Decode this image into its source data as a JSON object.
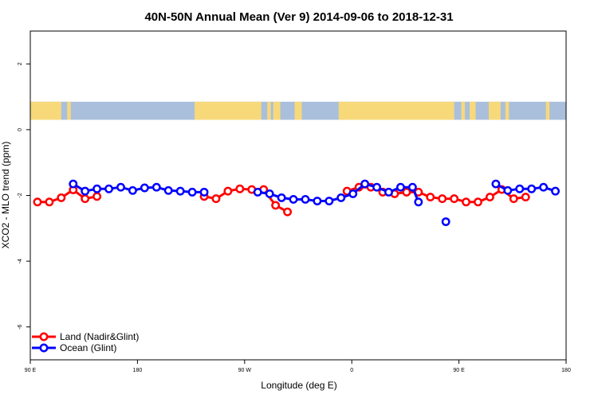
{
  "chart_data": {
    "type": "line",
    "title": "40N-50N Annual Mean (Ver 9)   2014-09-06 to 2018-12-31",
    "xlabel": "Longitude (deg E)",
    "ylabel": "XCO2 - MLO trend (ppm)",
    "xlim": [
      90,
      540
    ],
    "ylim": [
      -7,
      3
    ],
    "x_ticks": [
      {
        "value": 90,
        "label": "90 E"
      },
      {
        "value": 180,
        "label": "180"
      },
      {
        "value": 270,
        "label": "90 W"
      },
      {
        "value": 360,
        "label": "0"
      },
      {
        "value": 450,
        "label": "90 E"
      },
      {
        "value": 540,
        "label": "180"
      }
    ],
    "y_ticks": [
      {
        "value": 2,
        "label": "2"
      },
      {
        "value": 0,
        "label": "0"
      },
      {
        "value": -2,
        "label": "-2"
      },
      {
        "value": -4,
        "label": "-4"
      },
      {
        "value": -6,
        "label": "-6"
      }
    ],
    "grid": false,
    "legend_position": "bottom-left",
    "map_strip": {
      "land_color": "#f7d97a",
      "ocean_color": "#a9bfdc"
    },
    "series": [
      {
        "name": "Land (Nadir&Glint)",
        "color": "#ff0000",
        "segments": [
          [
            [
              96,
              -2.2
            ],
            [
              106,
              -2.2
            ],
            [
              116,
              -2.07
            ],
            [
              126,
              -1.83
            ],
            [
              136,
              -2.1
            ],
            [
              146,
              -2.03
            ]
          ],
          [
            [
              236,
              -2.03
            ],
            [
              246,
              -2.1
            ],
            [
              256,
              -1.87
            ],
            [
              266,
              -1.8
            ],
            [
              276,
              -1.82
            ],
            [
              286,
              -1.82
            ],
            [
              296,
              -2.3
            ],
            [
              306,
              -2.5
            ]
          ],
          [
            [
              356,
              -1.87
            ],
            [
              366,
              -1.75
            ],
            [
              376,
              -1.75
            ],
            [
              386,
              -1.9
            ],
            [
              396,
              -1.95
            ],
            [
              406,
              -1.9
            ],
            [
              416,
              -1.9
            ],
            [
              426,
              -2.05
            ],
            [
              436,
              -2.1
            ],
            [
              446,
              -2.1
            ],
            [
              456,
              -2.2
            ],
            [
              466,
              -2.2
            ],
            [
              476,
              -2.05
            ],
            [
              486,
              -1.82
            ],
            [
              496,
              -2.1
            ],
            [
              506,
              -2.05
            ]
          ]
        ]
      },
      {
        "name": "Ocean (Glint)",
        "color": "#0000ff",
        "segments": [
          [
            [
              126,
              -1.65
            ],
            [
              136,
              -1.87
            ],
            [
              146,
              -1.8
            ],
            [
              156,
              -1.8
            ],
            [
              166,
              -1.75
            ],
            [
              176,
              -1.85
            ],
            [
              186,
              -1.77
            ],
            [
              196,
              -1.75
            ],
            [
              206,
              -1.85
            ],
            [
              216,
              -1.87
            ],
            [
              226,
              -1.9
            ],
            [
              236,
              -1.9
            ]
          ],
          [
            [
              281,
              -1.9
            ],
            [
              291,
              -1.95
            ],
            [
              301,
              -2.07
            ],
            [
              311,
              -2.12
            ],
            [
              321,
              -2.12
            ],
            [
              331,
              -2.17
            ],
            [
              341,
              -2.17
            ],
            [
              351,
              -2.07
            ],
            [
              361,
              -1.95
            ],
            [
              371,
              -1.65
            ],
            [
              381,
              -1.75
            ],
            [
              391,
              -1.9
            ],
            [
              401,
              -1.75
            ],
            [
              411,
              -1.75
            ],
            [
              416,
              -2.2
            ]
          ],
          [
            [
              439,
              -2.8
            ]
          ],
          [
            [
              481,
              -1.65
            ],
            [
              491,
              -1.85
            ],
            [
              501,
              -1.8
            ],
            [
              511,
              -1.8
            ],
            [
              521,
              -1.75
            ],
            [
              531,
              -1.87
            ]
          ]
        ]
      }
    ]
  }
}
